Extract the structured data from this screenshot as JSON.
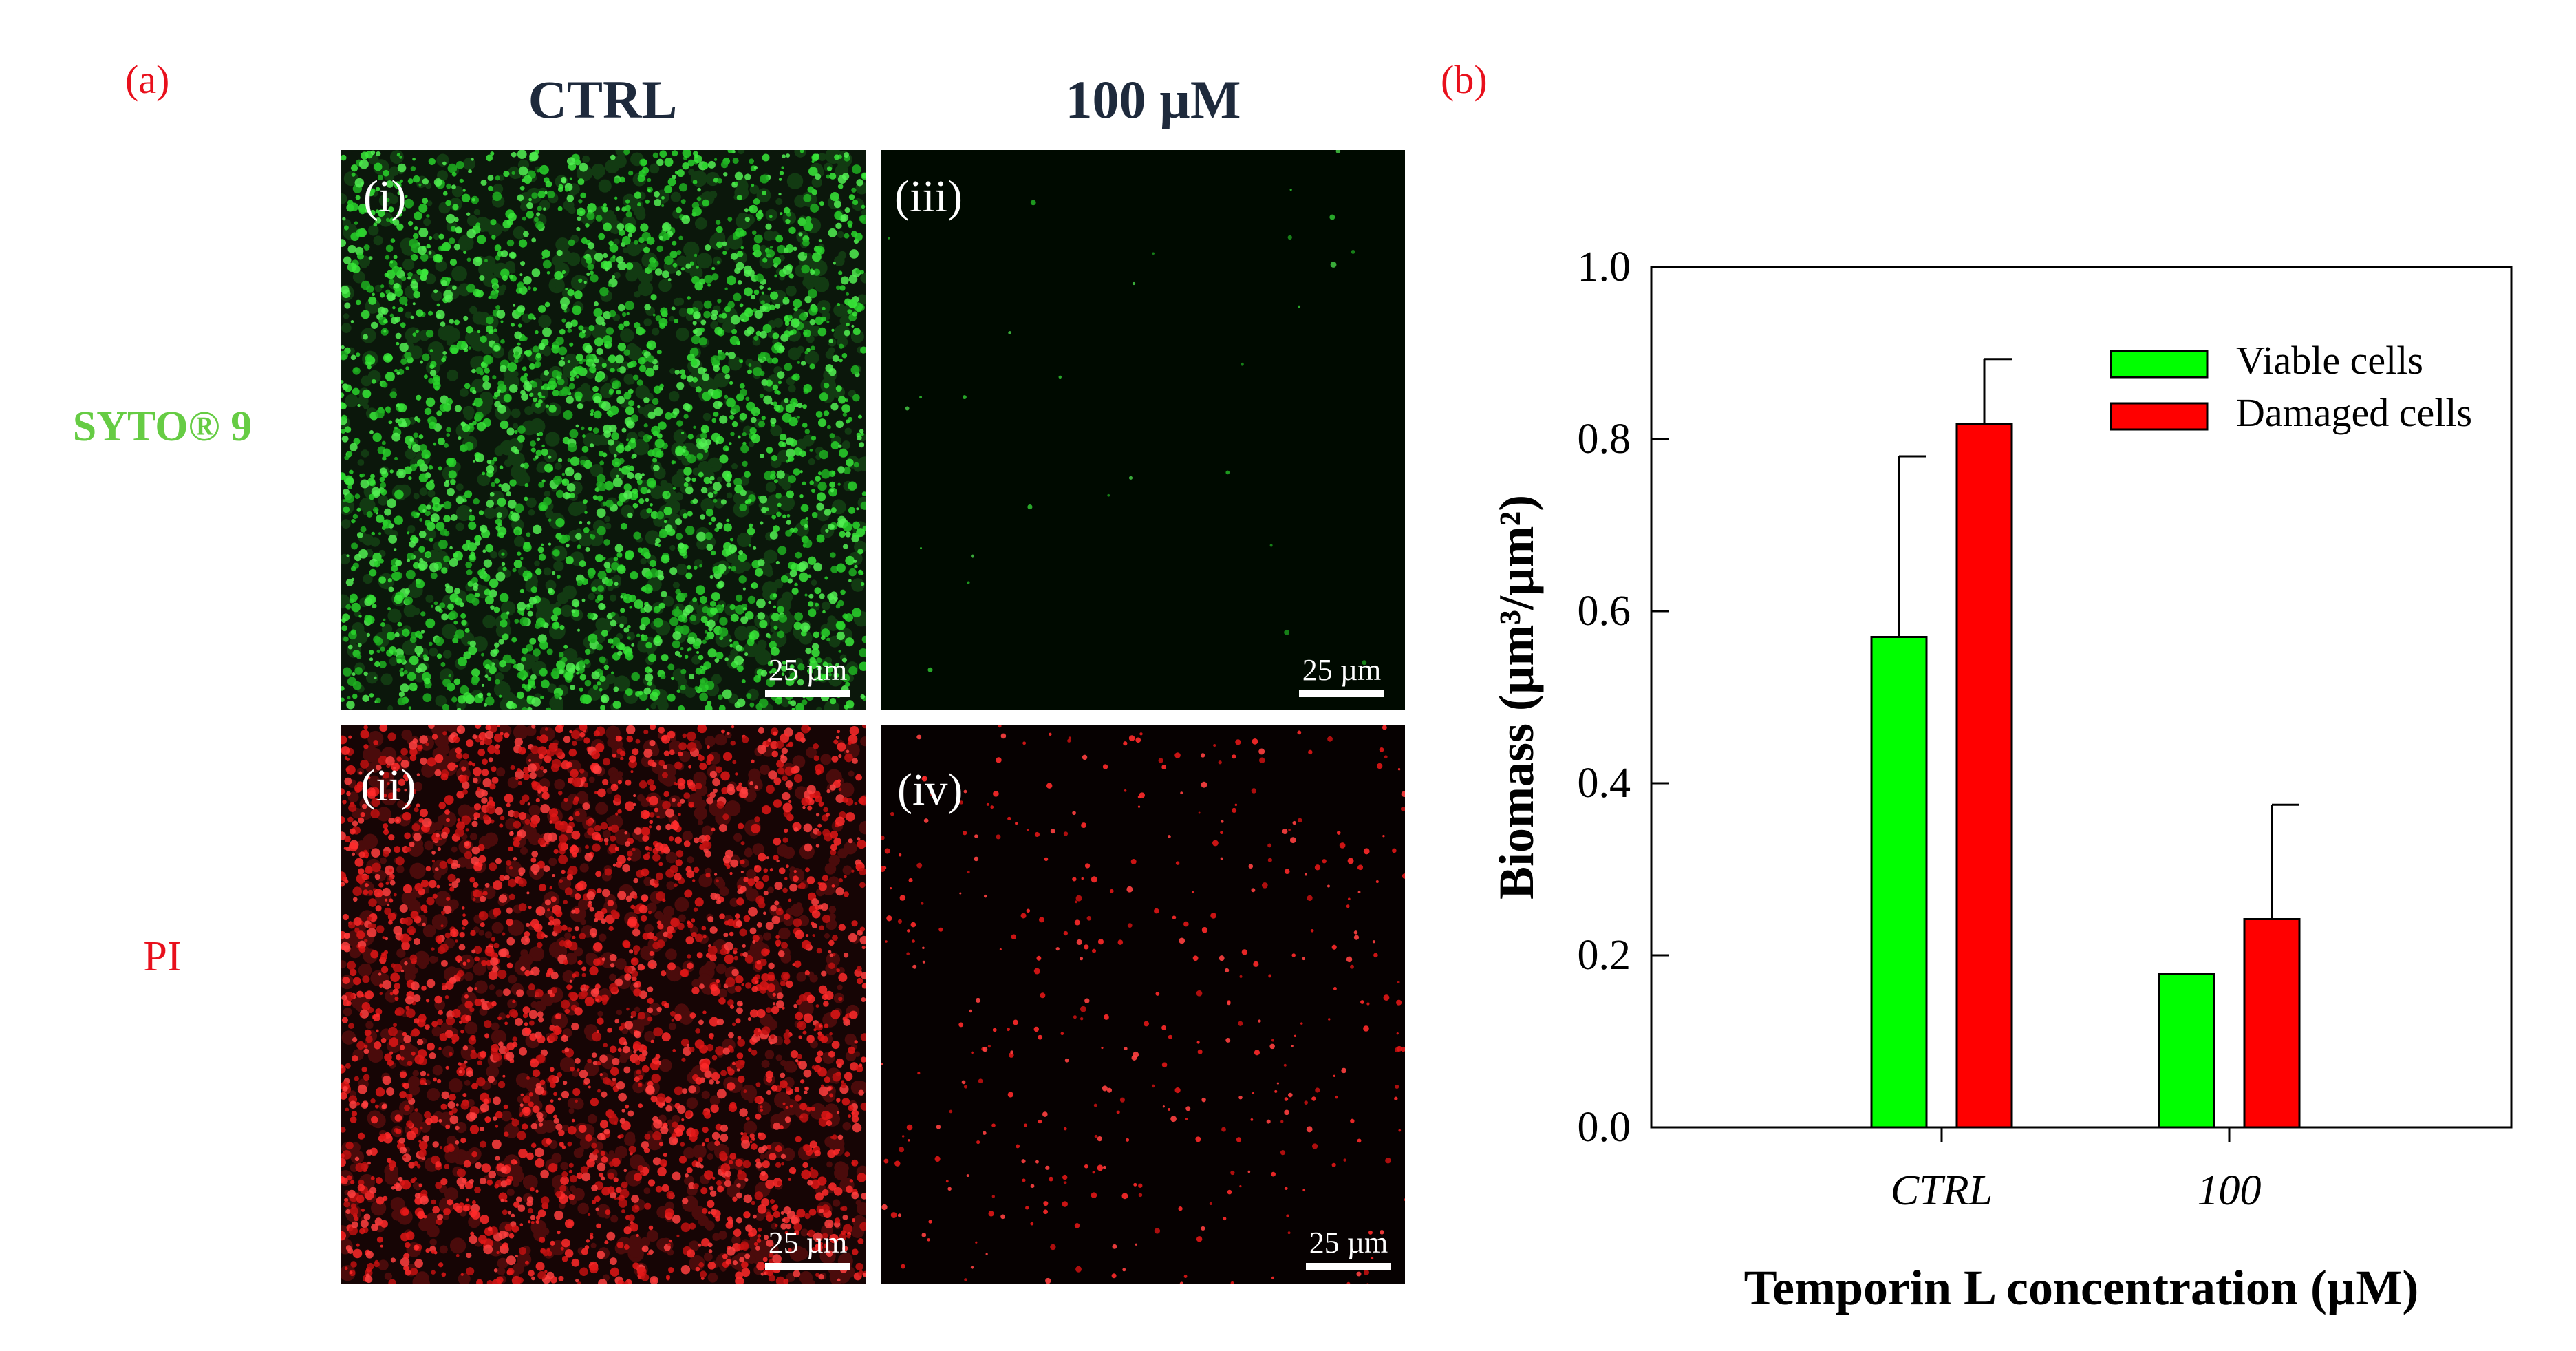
{
  "panel_a": {
    "tag": "(a)",
    "col_headers": [
      "CTRL",
      "100 µM"
    ],
    "row_labels": [
      {
        "text": "SYTO® 9",
        "color": "#66cc44"
      },
      {
        "text": "PI",
        "color": "#e8101c"
      }
    ],
    "images": [
      {
        "label": "(i)",
        "channel": "green",
        "density": "high",
        "scale": "25 µm"
      },
      {
        "label": "(iii)",
        "channel": "green",
        "density": "very-low",
        "scale": "25 µm"
      },
      {
        "label": "(ii)",
        "channel": "red",
        "density": "high",
        "scale": "25 µm"
      },
      {
        "label": "(iv)",
        "channel": "red",
        "density": "low",
        "scale": "25 µm"
      }
    ]
  },
  "panel_b": {
    "tag": "(b)"
  },
  "chart_data": {
    "type": "bar",
    "categories": [
      "CTRL",
      "100"
    ],
    "series": [
      {
        "name": "Viable cells",
        "color": "#00ff00",
        "values": [
          0.57,
          0.178
        ],
        "errors": [
          0.21,
          0
        ]
      },
      {
        "name": "Damaged cells",
        "color": "#ff0000",
        "values": [
          0.818,
          0.242
        ],
        "errors": [
          0.075,
          0.133
        ]
      }
    ],
    "xlabel": "Temporin L concentration (µM)",
    "ylabel": "Biomass (µm³/µm²)",
    "ylim": [
      0,
      1.0
    ],
    "yticks": [
      "0.0",
      "0.2",
      "0.4",
      "0.6",
      "0.8",
      "1.0"
    ],
    "grid": false,
    "legend_position": "top-right"
  }
}
